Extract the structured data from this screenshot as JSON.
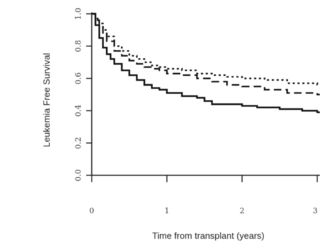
{
  "chart_data": {
    "type": "line",
    "title": "",
    "xlabel": "Time from transplant (years)",
    "ylabel": "Leukemia Free Survival",
    "xlim": [
      0,
      3
    ],
    "ylim": [
      0,
      1
    ],
    "x_ticks": [
      0,
      1,
      2,
      3
    ],
    "x_tick_labels": [
      "0",
      "1",
      "2",
      "3"
    ],
    "y_ticks": [
      0,
      0.2,
      0.4,
      0.6,
      0.8,
      1.0
    ],
    "y_tick_labels": [
      "0.0",
      "0.2",
      "0.4",
      "0.6",
      "0.8",
      "1.0"
    ],
    "y_tick_label_rotation": -90,
    "grid": false,
    "legend": "none",
    "step": true,
    "series": [
      {
        "style": "solid",
        "color": "#111111",
        "x": [
          0,
          0.05,
          0.1,
          0.15,
          0.2,
          0.25,
          0.3,
          0.4,
          0.5,
          0.6,
          0.7,
          0.8,
          0.9,
          1.0,
          1.2,
          1.4,
          1.5,
          1.6,
          1.8,
          2.0,
          2.2,
          2.5,
          2.8,
          3.0
        ],
        "y": [
          1.0,
          0.93,
          0.85,
          0.79,
          0.75,
          0.72,
          0.69,
          0.65,
          0.62,
          0.59,
          0.56,
          0.54,
          0.53,
          0.51,
          0.49,
          0.48,
          0.46,
          0.44,
          0.44,
          0.43,
          0.42,
          0.41,
          0.4,
          0.39
        ]
      },
      {
        "style": "dashed",
        "color": "#111111",
        "x": [
          0,
          0.05,
          0.1,
          0.15,
          0.2,
          0.3,
          0.4,
          0.5,
          0.6,
          0.7,
          0.8,
          0.9,
          1.0,
          1.2,
          1.4,
          1.6,
          1.8,
          2.0,
          2.3,
          2.6,
          3.0
        ],
        "y": [
          1.0,
          0.96,
          0.92,
          0.87,
          0.83,
          0.77,
          0.74,
          0.71,
          0.69,
          0.67,
          0.66,
          0.65,
          0.63,
          0.62,
          0.6,
          0.58,
          0.56,
          0.55,
          0.53,
          0.51,
          0.5
        ]
      },
      {
        "style": "dotted",
        "color": "#111111",
        "x": [
          0,
          0.05,
          0.1,
          0.15,
          0.2,
          0.3,
          0.4,
          0.5,
          0.6,
          0.7,
          0.8,
          0.9,
          1.0,
          1.2,
          1.4,
          1.6,
          1.8,
          2.0,
          2.3,
          2.6,
          3.0
        ],
        "y": [
          1.0,
          0.97,
          0.94,
          0.9,
          0.86,
          0.8,
          0.77,
          0.74,
          0.72,
          0.7,
          0.68,
          0.67,
          0.66,
          0.65,
          0.63,
          0.62,
          0.61,
          0.6,
          0.59,
          0.57,
          0.56
        ]
      }
    ]
  }
}
